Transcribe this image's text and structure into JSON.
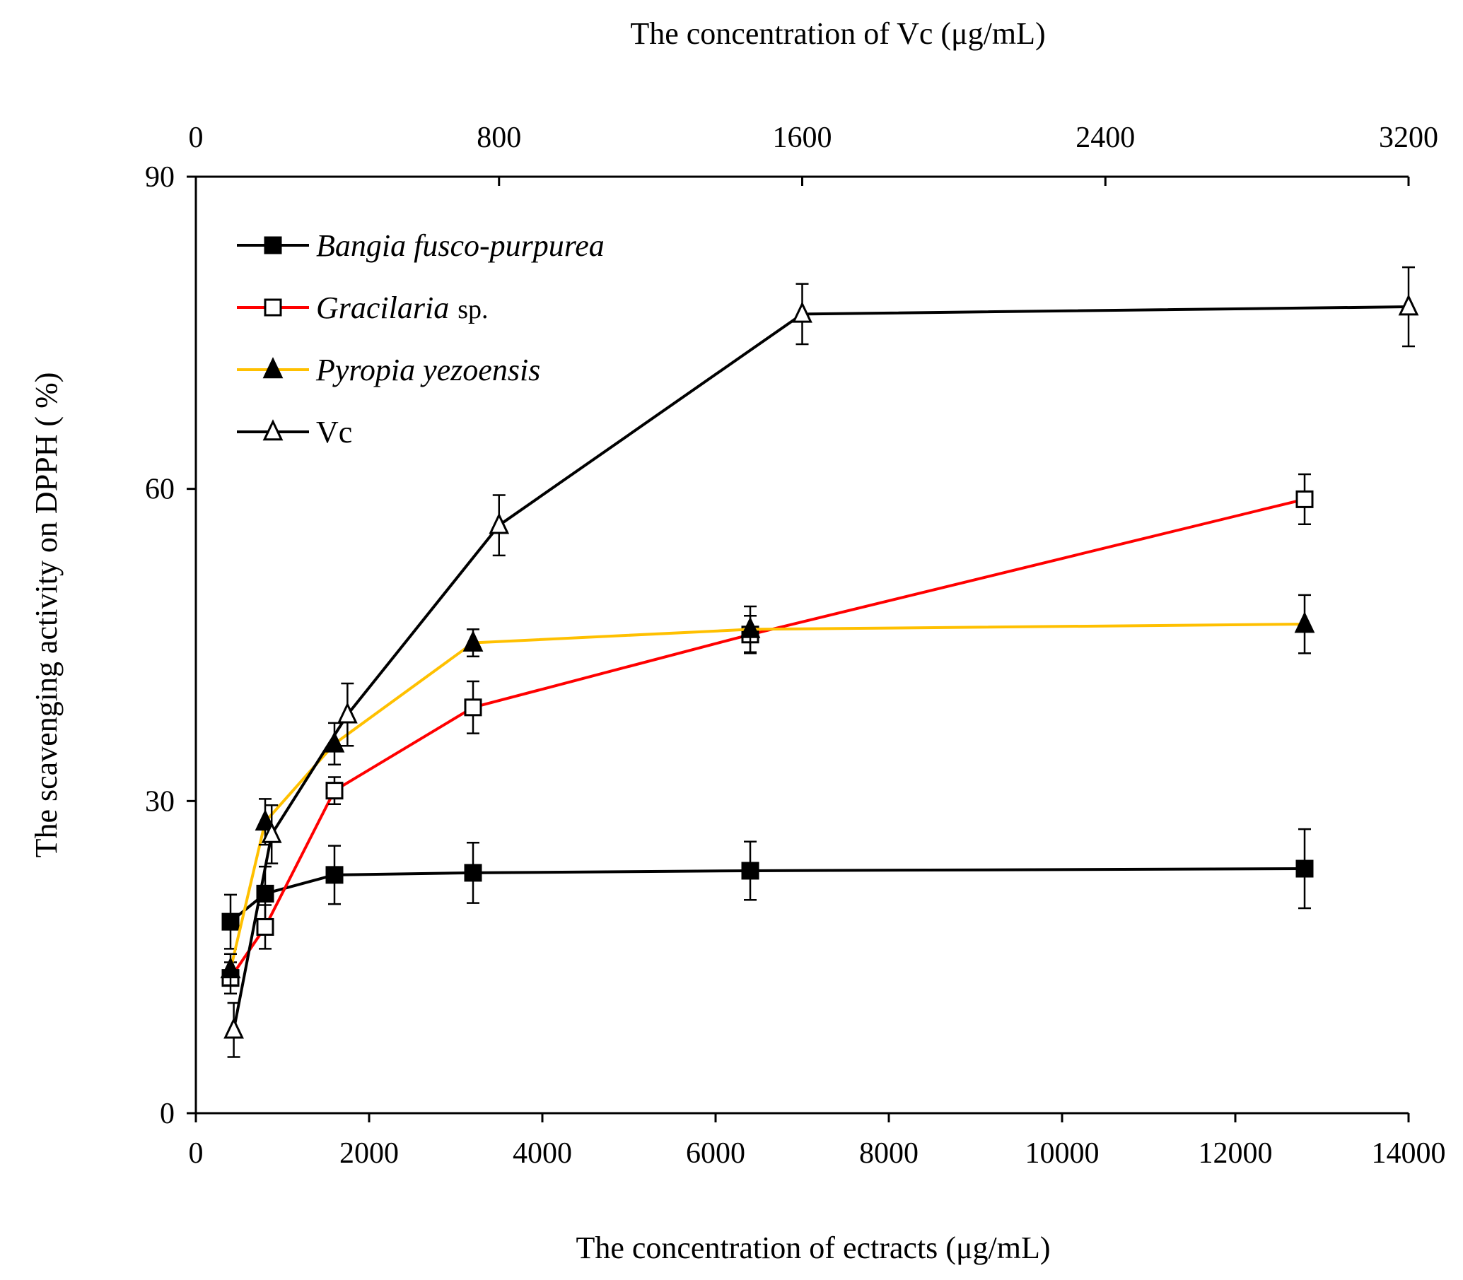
{
  "chart_data": {
    "type": "line",
    "title": "",
    "xlabel": "The concentration of ectracts (μg/mL)",
    "x2label": "The concentration of Vc (μg/mL)",
    "ylabel": "The scavenging activity on DPPH ( %)",
    "xlim": [
      0,
      14000
    ],
    "x2lim": [
      0,
      3200
    ],
    "ylim": [
      0,
      90
    ],
    "xticks": [
      0,
      2000,
      4000,
      6000,
      8000,
      10000,
      12000,
      14000
    ],
    "x2ticks": [
      0,
      800,
      1600,
      2400,
      3200
    ],
    "yticks": [
      0,
      30,
      60,
      90
    ],
    "grid": false,
    "legend_position": "top-left",
    "series": [
      {
        "name": "Bangia fusco-purpurea",
        "suffix": "",
        "axis": "bottom",
        "color": "#000000",
        "marker": "square-filled",
        "x": [
          400,
          800,
          1600,
          3200,
          6400,
          12800
        ],
        "y": [
          18.4,
          21.1,
          22.9,
          23.1,
          23.3,
          23.5
        ],
        "err": [
          2.6,
          2.6,
          2.8,
          2.9,
          2.8,
          3.8
        ]
      },
      {
        "name": "Gracilaria",
        "suffix": "sp.",
        "axis": "bottom",
        "color": "#ff0000",
        "marker": "square-open",
        "x": [
          400,
          800,
          1600,
          3200,
          6400,
          12800
        ],
        "y": [
          13.0,
          17.9,
          31.0,
          39.0,
          46.0,
          59.0
        ],
        "err": [
          1.5,
          2.1,
          1.3,
          2.5,
          1.8,
          2.4
        ]
      },
      {
        "name": "Pyropia yezoensis",
        "suffix": "",
        "axis": "bottom",
        "color": "#ffc000",
        "marker": "triangle-filled",
        "x": [
          400,
          800,
          1600,
          3200,
          6400,
          12800
        ],
        "y": [
          13.8,
          28.0,
          35.5,
          45.2,
          46.5,
          47.0
        ],
        "err": [
          1.5,
          2.2,
          2.0,
          1.3,
          2.2,
          2.8
        ]
      },
      {
        "name": "Vc",
        "suffix": "",
        "axis": "top",
        "color": "#000000",
        "marker": "triangle-open",
        "x": [
          100,
          200,
          400,
          800,
          1600,
          3200
        ],
        "y": [
          8.0,
          26.8,
          38.3,
          56.5,
          76.8,
          77.5
        ],
        "err": [
          2.6,
          2.8,
          3.0,
          2.9,
          2.9,
          3.8
        ]
      }
    ]
  }
}
